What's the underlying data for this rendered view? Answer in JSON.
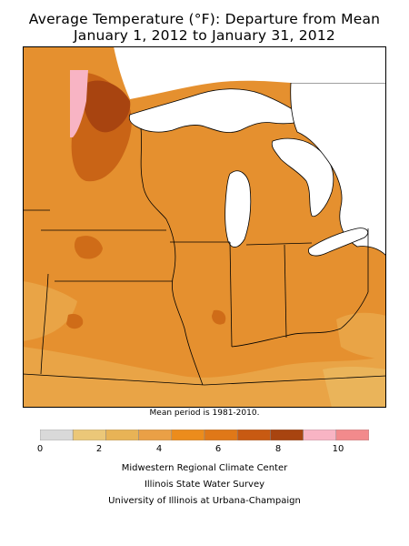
{
  "title": {
    "line1": "Average Temperature (°F): Departure from Mean",
    "line2": "January 1, 2012 to January 31, 2012"
  },
  "mean_period_note": "Mean period is 1981-2010.",
  "legend": {
    "ticks": [
      "0",
      "2",
      "4",
      "6",
      "8",
      "10"
    ],
    "colors": [
      "#d9d9d9",
      "#ebc778",
      "#e8b356",
      "#eaa046",
      "#ec8c1c",
      "#e07818",
      "#c85a12",
      "#a84410",
      "#f8b4c4",
      "#f28a8c"
    ]
  },
  "credits": [
    "Midwestern Regional Climate Center",
    "Illinois State Water Survey",
    "University of Illinois at Urbana-Champaign"
  ],
  "colors": {
    "departure_4_6": "#eaa046",
    "departure_6_7": "#e38a2e",
    "departure_7_8": "#c85a12",
    "departure_8_9": "#a84410",
    "departure_9_10": "#f8b4c4",
    "departure_2_4": "#e8b356",
    "water": "#ffffff",
    "boundary": "#000000"
  }
}
